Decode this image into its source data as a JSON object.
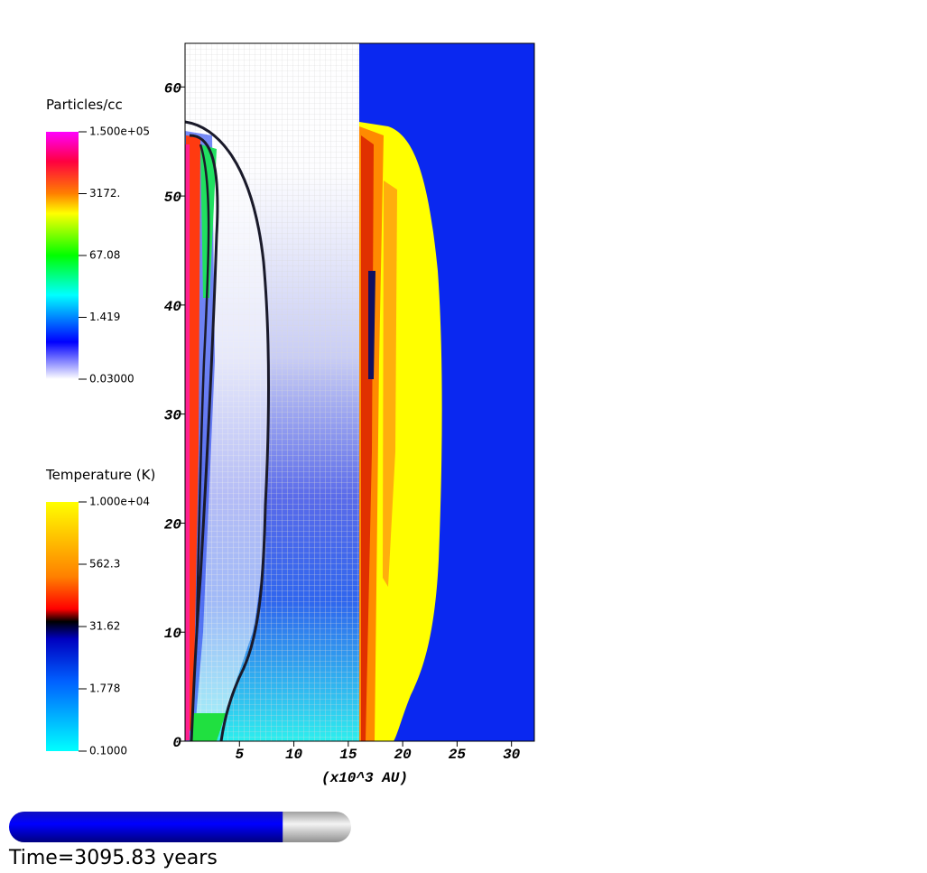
{
  "chart_data": {
    "type": "field",
    "xlabel": "(x10^3 AU)",
    "xlim": [
      0,
      32.1
    ],
    "ylim": [
      0,
      64
    ],
    "xticks": [
      5,
      10,
      15,
      20,
      25,
      30
    ],
    "yticks": [
      0,
      10,
      20,
      30,
      40,
      50,
      60
    ],
    "colorbars": [
      {
        "title": "Particles/cc",
        "labels": [
          "1.500e+05",
          "3172.",
          "67.08",
          "1.419",
          "0.03000"
        ]
      },
      {
        "title": "Temperature (K)",
        "labels": [
          "1.000e+04",
          "562.3",
          "31.62",
          "1.778",
          "0.1000"
        ]
      }
    ],
    "time_label": "Time=3095.83 years",
    "progress": 0.8
  }
}
